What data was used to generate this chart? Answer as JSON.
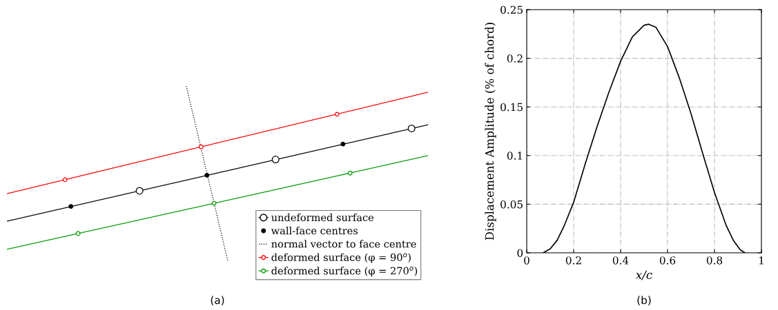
{
  "chart_data": [
    {
      "type": "other",
      "title": "(a)",
      "legend": "bottom right",
      "series": [
        {
          "name": "undeformed surface",
          "color": "#000000",
          "marker": "circle",
          "line_style": "solid"
        },
        {
          "name": "wall-face centres",
          "color": "#000000",
          "marker": "circle"
        },
        {
          "name": "normal vector to face centre",
          "color": "#000000",
          "line_style": "dotted"
        },
        {
          "name": "deformed surface (φ = 90$^{o}$)",
          "color": "#ff0000",
          "marker": "circle",
          "line_style": "solid"
        },
        {
          "name": "deformed surface (φ = 270$^{o}$)",
          "color": "#009900",
          "marker": "circle",
          "line_style": "solid"
        }
      ]
    },
    {
      "type": "line",
      "title": "(b)",
      "xlabel": "x/c",
      "ylabel": "Displacement Amplitude (% of chord)",
      "grid": true,
      "xlim": [
        0,
        1
      ],
      "xticks": [
        0,
        0.2,
        0.4,
        0.6,
        0.8,
        1
      ],
      "ylim": [
        0,
        0.25
      ],
      "yticks": [
        0,
        0.05,
        0.1,
        0.15,
        0.2,
        0.25
      ],
      "series": [
        {
          "color": "#000000",
          "x": [
            0.07,
            0.1,
            0.13,
            0.16,
            0.2,
            0.25,
            0.3,
            0.35,
            0.4,
            0.45,
            0.5,
            0.52,
            0.55,
            0.6,
            0.65,
            0.7,
            0.75,
            0.8,
            0.85,
            0.88,
            0.91,
            0.93
          ],
          "values": [
            0,
            0.004,
            0.013,
            0.028,
            0.052,
            0.092,
            0.13,
            0.165,
            0.197,
            0.222,
            0.234,
            0.235,
            0.232,
            0.212,
            0.18,
            0.143,
            0.102,
            0.062,
            0.028,
            0.013,
            0.003,
            0
          ]
        }
      ]
    }
  ]
}
